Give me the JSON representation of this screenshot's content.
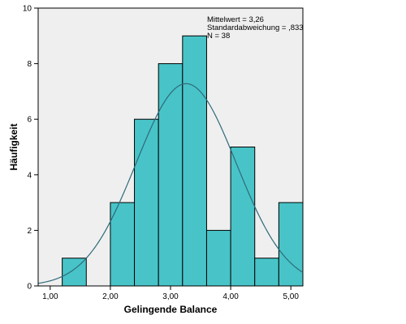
{
  "chart_data": {
    "type": "bar",
    "subtype": "histogram",
    "bins": [
      {
        "start": 1.2,
        "end": 1.6,
        "count": 1
      },
      {
        "start": 1.6,
        "end": 2.0,
        "count": 0
      },
      {
        "start": 2.0,
        "end": 2.4,
        "count": 3
      },
      {
        "start": 2.4,
        "end": 2.8,
        "count": 6
      },
      {
        "start": 2.8,
        "end": 3.2,
        "count": 8
      },
      {
        "start": 3.2,
        "end": 3.6,
        "count": 9
      },
      {
        "start": 3.6,
        "end": 4.0,
        "count": 2
      },
      {
        "start": 4.0,
        "end": 4.4,
        "count": 5
      },
      {
        "start": 4.4,
        "end": 4.8,
        "count": 1
      },
      {
        "start": 4.8,
        "end": 5.2,
        "count": 3
      }
    ],
    "normal_curve": {
      "mean": 3.26,
      "sd": 0.833,
      "n": 38
    },
    "xlabel": "Gelingende Balance",
    "ylabel": "Häufigkeit",
    "xlim": [
      0.8,
      5.2
    ],
    "ylim": [
      0,
      10
    ],
    "x_ticks": [
      {
        "value": 1.0,
        "label": "1,00"
      },
      {
        "value": 2.0,
        "label": "2,00"
      },
      {
        "value": 3.0,
        "label": "3,00"
      },
      {
        "value": 4.0,
        "label": "4,00"
      },
      {
        "value": 5.0,
        "label": "5,00"
      }
    ],
    "y_ticks": [
      {
        "value": 0,
        "label": "0"
      },
      {
        "value": 2,
        "label": "2"
      },
      {
        "value": 4,
        "label": "4"
      },
      {
        "value": 6,
        "label": "6"
      },
      {
        "value": 8,
        "label": "8"
      },
      {
        "value": 10,
        "label": "10"
      }
    ],
    "stats": [
      "Mittelwert = 3,26",
      "Standardabweichung = ,833",
      "N = 38"
    ],
    "grid": false,
    "colors": {
      "plot_background": "#efefef",
      "bar_fill": "#48c4c8",
      "bar_stroke": "#000000",
      "curve": "#2f6a7a",
      "axis": "#000000"
    }
  }
}
